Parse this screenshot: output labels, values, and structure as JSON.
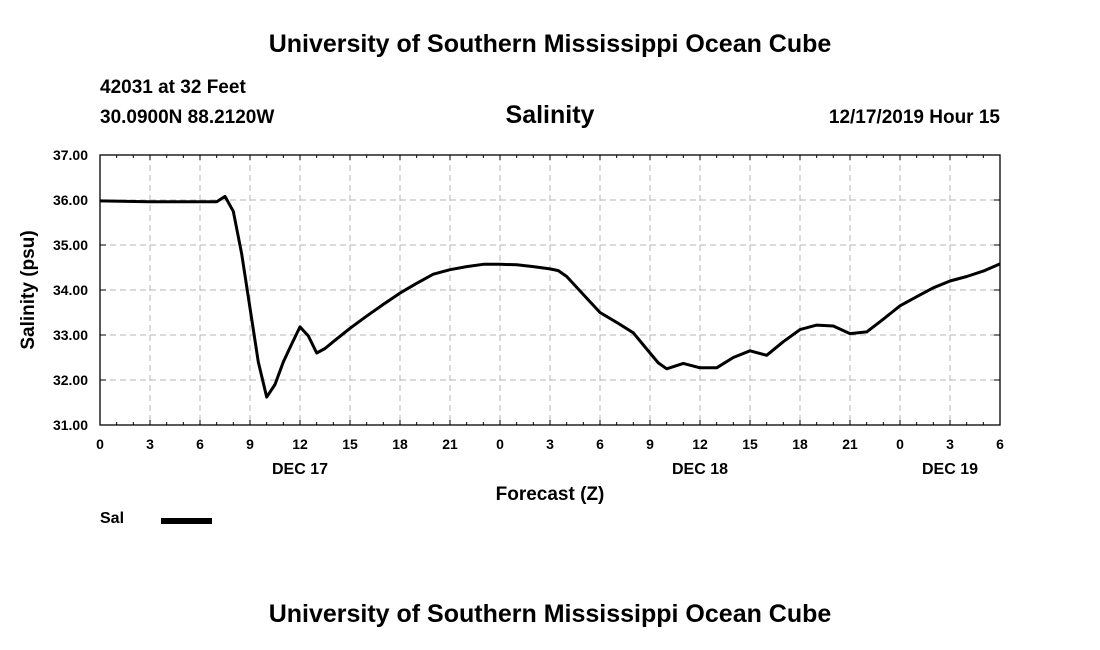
{
  "header": {
    "title": "University of Southern Mississippi Ocean Cube",
    "station": "42031 at 32 Feet",
    "coordinates": "30.0900N 88.2120W",
    "variable": "Salinity",
    "datetime": "12/17/2019 Hour 15"
  },
  "footer": {
    "title": "University of Southern Mississippi Ocean Cube"
  },
  "legend": {
    "label": "Sal",
    "color": "#000000"
  },
  "chart_data": {
    "type": "line",
    "title": "Salinity",
    "xlabel": "Forecast (Z)",
    "ylabel": "Salinity (psu)",
    "xlim": [
      0,
      54
    ],
    "ylim": [
      31.0,
      37.0
    ],
    "grid": true,
    "x_ticks": [
      0,
      3,
      6,
      9,
      12,
      15,
      18,
      21,
      24,
      27,
      30,
      33,
      36,
      39,
      42,
      45,
      48,
      51,
      54
    ],
    "x_tick_labels": [
      "0",
      "3",
      "6",
      "9",
      "12",
      "15",
      "18",
      "21",
      "0",
      "3",
      "6",
      "9",
      "12",
      "15",
      "18",
      "21",
      "0",
      "3",
      "6"
    ],
    "y_ticks": [
      31.0,
      32.0,
      33.0,
      34.0,
      35.0,
      36.0,
      37.0
    ],
    "y_tick_labels": [
      "31.00",
      "32.00",
      "33.00",
      "34.00",
      "35.00",
      "36.00",
      "37.00"
    ],
    "day_labels": [
      {
        "x": 12,
        "label": "DEC 17"
      },
      {
        "x": 36,
        "label": "DEC 18"
      },
      {
        "x": 51,
        "label": "DEC 19"
      }
    ],
    "series": [
      {
        "name": "Sal",
        "color": "#000000",
        "x": [
          0,
          3,
          6,
          7,
          7.5,
          8,
          8.5,
          9,
          9.5,
          10,
          10.5,
          11,
          11.5,
          12,
          12.5,
          13,
          13.5,
          14,
          15,
          16,
          17,
          18,
          19,
          20,
          21,
          22,
          23,
          24,
          25,
          26,
          27,
          27.5,
          28,
          29,
          30,
          31,
          32,
          33,
          33.5,
          34,
          35,
          36,
          37,
          38,
          39,
          40,
          41,
          42,
          43,
          44,
          45,
          46,
          47,
          48,
          49,
          50,
          51,
          52,
          53,
          54
        ],
        "y": [
          35.98,
          35.96,
          35.96,
          35.96,
          36.08,
          35.75,
          34.8,
          33.6,
          32.4,
          31.62,
          31.9,
          32.4,
          32.8,
          33.18,
          32.98,
          32.6,
          32.7,
          32.85,
          33.15,
          33.42,
          33.68,
          33.93,
          34.15,
          34.35,
          34.45,
          34.52,
          34.57,
          34.57,
          34.56,
          34.52,
          34.47,
          34.43,
          34.3,
          33.9,
          33.5,
          33.28,
          33.05,
          32.6,
          32.38,
          32.25,
          32.37,
          32.27,
          32.27,
          32.5,
          32.65,
          32.55,
          32.85,
          33.12,
          33.22,
          33.2,
          33.03,
          33.07,
          33.35,
          33.65,
          33.85,
          34.05,
          34.2,
          34.3,
          34.42,
          34.58
        ]
      }
    ]
  }
}
